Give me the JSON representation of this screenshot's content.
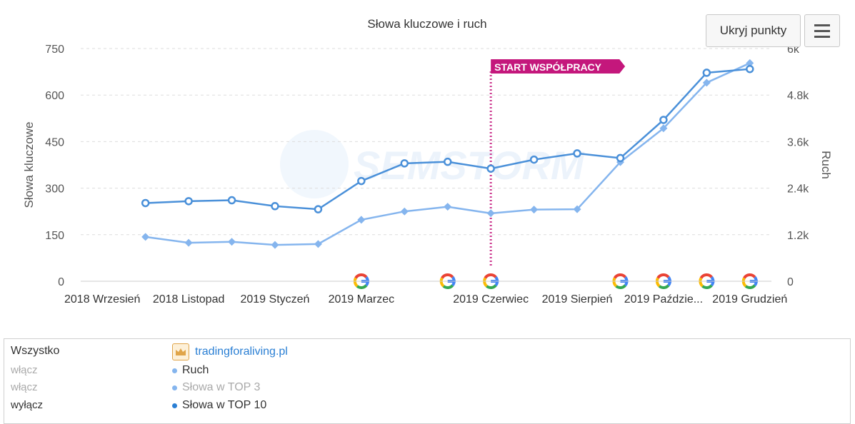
{
  "chart_data": {
    "type": "line",
    "title": "Słowa kluczowe i ruch",
    "ylabel_left": "Słowa kluczowe",
    "ylabel_right": "Ruch",
    "y_left_range": [
      0,
      750
    ],
    "y_left_ticks": [
      "0",
      "150",
      "300",
      "450",
      "600",
      "750"
    ],
    "y_right_range": [
      0,
      6000
    ],
    "y_right_ticks": [
      "0",
      "1.2k",
      "2.4k",
      "3.6k",
      "4.8k",
      "6k"
    ],
    "x_tick_labels": [
      {
        "i": 0,
        "label": "2018 Wrzesień"
      },
      {
        "i": 2,
        "label": "2018 Listopad"
      },
      {
        "i": 4,
        "label": "2019 Styczeń"
      },
      {
        "i": 6,
        "label": "2019 Marzec"
      },
      {
        "i": 9,
        "label": "2019 Czerwiec"
      },
      {
        "i": 11,
        "label": "2019 Sierpień"
      },
      {
        "i": 13,
        "label": "2019 Paździe..."
      },
      {
        "i": 15,
        "label": "2019 Grudzień"
      }
    ],
    "series": [
      {
        "name": "Słowa w TOP 10",
        "axis": "left",
        "color": "#4a90d9",
        "marker": "circle",
        "values": [
          null,
          252,
          258,
          261,
          242,
          232,
          323,
          380,
          385,
          363,
          392,
          412,
          397,
          520,
          672,
          684
        ]
      },
      {
        "name": "Słowa w TOP 3",
        "axis": "left",
        "color": "#85b5ee",
        "marker": "diamond",
        "values": [
          null,
          143,
          124,
          127,
          117,
          120,
          198,
          225,
          240,
          219,
          231,
          232,
          384,
          493,
          640,
          703
        ]
      }
    ],
    "google_update_markers": [
      6,
      8,
      9,
      12,
      13,
      14,
      15
    ],
    "annotation": {
      "at": 9,
      "label": "START WSPÓŁPRACY",
      "color": "#c4177c"
    },
    "watermark": "SEMSTORM",
    "grid": "horizontal-dashed"
  },
  "toolbar": {
    "hide_points": "Ukryj punkty",
    "menu_icon": "hamburger-icon"
  },
  "legend": {
    "all_label": "Wszystko",
    "site": "tradingforaliving.pl",
    "rows": [
      {
        "toggle": "włącz",
        "series": "Ruch",
        "dot_color": "#85b5ee",
        "toggle_color": "#aaaaaa",
        "series_color": "#333333"
      },
      {
        "toggle": "włącz",
        "series": "Słowa w TOP 3",
        "dot_color": "#85b5ee",
        "toggle_color": "#aaaaaa",
        "series_color": "#aaaaaa"
      },
      {
        "toggle": "wyłącz",
        "series": "Słowa w TOP 10",
        "dot_color": "#2a7fd4",
        "toggle_color": "#333333",
        "series_color": "#333333"
      }
    ]
  }
}
